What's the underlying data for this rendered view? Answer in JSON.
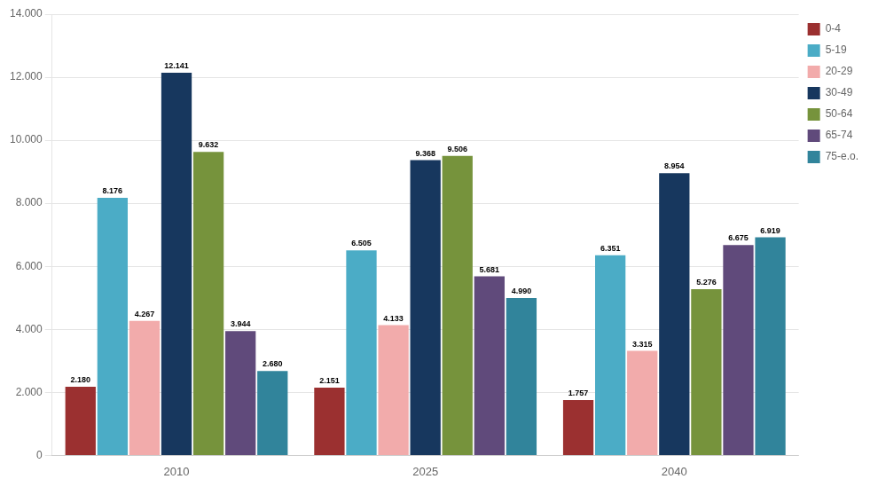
{
  "chart_data": {
    "type": "bar",
    "categories": [
      "2010",
      "2025",
      "2040"
    ],
    "series": [
      {
        "name": "0-4",
        "color": "#9B3030",
        "values": [
          2180,
          2151,
          1757
        ],
        "value_labels": [
          "2.180",
          "2.151",
          "1.757"
        ]
      },
      {
        "name": "5-19",
        "color": "#4BACC6",
        "values": [
          8176,
          6505,
          6351
        ],
        "value_labels": [
          "8.176",
          "6.505",
          "6.351"
        ]
      },
      {
        "name": "20-29",
        "color": "#F2ABAB",
        "values": [
          4267,
          4133,
          3315
        ],
        "value_labels": [
          "4.267",
          "4.133",
          "3.315"
        ]
      },
      {
        "name": "30-49",
        "color": "#17375E",
        "values": [
          12141,
          9368,
          8954
        ],
        "value_labels": [
          "12.141",
          "9.368",
          "8.954"
        ]
      },
      {
        "name": "50-64",
        "color": "#76933C",
        "values": [
          9632,
          9506,
          5276
        ],
        "value_labels": [
          "9.632",
          "9.506",
          "5.276"
        ]
      },
      {
        "name": "65-74",
        "color": "#604A7B",
        "values": [
          3944,
          5681,
          6675
        ],
        "value_labels": [
          "3.944",
          "5.681",
          "6.675"
        ]
      },
      {
        "name": "75-e.o.",
        "color": "#31849B",
        "values": [
          2680,
          4990,
          6919
        ],
        "value_labels": [
          "2.680",
          "4.990",
          "6.919"
        ]
      }
    ],
    "ylim": [
      0,
      14000
    ],
    "yticks": [
      0,
      {
        "value": 2000,
        "label": "2.000"
      },
      {
        "value": 4000,
        "label": "4.000"
      },
      {
        "value": 6000,
        "label": "6.000"
      },
      {
        "value": 8000,
        "label": "8.000"
      },
      {
        "value": 10000,
        "label": "10.000"
      },
      {
        "value": 12000,
        "label": "12.000"
      },
      {
        "value": 14000,
        "label": "14.000"
      }
    ],
    "grid": true,
    "legend": "upper right",
    "data_labels": true
  }
}
